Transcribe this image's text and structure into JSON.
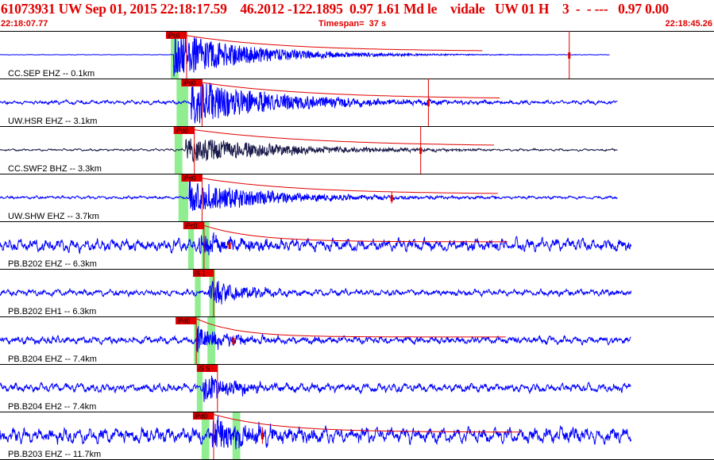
{
  "header": {
    "title": "61073931 UW Sep 01, 2015 22:18:17.59    46.2012 -122.1895  0.97 1.61 Md le    vidale   UW 01 H    3  -  - ---   0.97 0.00",
    "start_time": "22:18:07.77",
    "timespan": "Timespan=  37 s",
    "end_time": "22:18:45.26"
  },
  "colors": {
    "title": "#e00000",
    "trace": "#0000ff",
    "dark_trace": "#1a1a4a",
    "pick_box": "#e00000",
    "envelope": "#e00000",
    "window": "#90ee90",
    "divider": "#000000"
  },
  "chart_data": {
    "type": "line",
    "title": "61073931 UW Sep 01, 2015 22:18:17.59",
    "x_range_seconds": [
      0,
      37
    ],
    "traces": [
      {
        "label": "CC.SEP EHZ -- 0.1km",
        "pick": "iPc0",
        "pick_time": 8.6,
        "onset_time": 9.0,
        "green": [
          [
            8.85,
            9.25
          ]
        ],
        "amplitude": 0.95,
        "noise": 0.012,
        "decay": 4.0,
        "end_time": 31.6,
        "marker_time": 29.5,
        "marker_len": 1.0,
        "envelope": true,
        "color": "#0000ff"
      },
      {
        "label": "UW.HSR EHZ -- 3.1km",
        "pick": "iPd0",
        "pick_time": 9.4,
        "onset_time": 9.9,
        "green": [
          [
            9.15,
            9.75
          ]
        ],
        "amplitude": 0.95,
        "noise": 0.09,
        "decay": 4.5,
        "end_time": 32.0,
        "marker_time": 22.2,
        "marker_len": 1.0,
        "envelope": true,
        "color": "#0000ff"
      },
      {
        "label": "CC.SWF2 BHZ -- 3.3km",
        "pick": "iPd0",
        "pick_time": 9.0,
        "onset_time": 9.6,
        "green": [
          [
            9.05,
            9.45
          ]
        ],
        "amplitude": 0.55,
        "noise": 0.05,
        "decay": 5.0,
        "end_time": 32.0,
        "marker_time": 21.8,
        "marker_len": 1.0,
        "envelope": true,
        "color": "#1a1a4a"
      },
      {
        "label": "UW.SHW EHZ -- 3.7km",
        "pick": "iPd0",
        "pick_time": 9.4,
        "onset_time": 9.8,
        "green": [
          [
            9.25,
            9.75
          ]
        ],
        "amplitude": 0.7,
        "noise": 0.07,
        "decay": 4.0,
        "end_time": 32.0,
        "marker_time": 20.3,
        "marker_len": 0.25,
        "envelope": true,
        "color": "#0000ff"
      },
      {
        "label": "PB.B202 EHZ -- 6.3km",
        "pick": "iPc0",
        "pick_time": 9.5,
        "onset_time": 10.3,
        "green": [
          [
            9.75,
            10.05
          ],
          [
            10.45,
            10.85
          ]
        ],
        "amplitude": 0.5,
        "noise": 0.3,
        "decay": 2.0,
        "end_time": 32.7,
        "marker_time": 11.9,
        "marker_len": 0.1,
        "envelope": true,
        "color": "#0000ff"
      },
      {
        "label": "PB.B202 EH1 -- 6.3km",
        "pick": "iS 1",
        "pick_time": 10.0,
        "onset_time": 10.8,
        "green": [
          [
            10.1,
            10.4
          ],
          [
            10.85,
            11.15
          ]
        ],
        "amplitude": 0.6,
        "noise": 0.15,
        "decay": 1.8,
        "end_time": 32.7,
        "marker_time": null,
        "marker_len": 0,
        "envelope": false,
        "color": "#0000ff"
      },
      {
        "label": "PB.B204 EHZ -- 7.4km",
        "pick": "iPd0",
        "pick_time": 9.1,
        "onset_time": 10.2,
        "green": [
          [
            10.05,
            10.35
          ],
          [
            10.75,
            11.15
          ]
        ],
        "amplitude": 0.55,
        "noise": 0.18,
        "decay": 1.6,
        "end_time": 32.7,
        "marker_time": 12.1,
        "marker_len": 0.2,
        "envelope": true,
        "color": "#0000ff"
      },
      {
        "label": "PB.B204 EH2 -- 7.4km",
        "pick": "iS S",
        "pick_time": 10.2,
        "onset_time": 10.5,
        "green": [
          [
            10.2,
            10.5
          ]
        ],
        "amplitude": 0.6,
        "noise": 0.2,
        "decay": 1.8,
        "end_time": 32.7,
        "marker_time": null,
        "marker_len": 0,
        "envelope": false,
        "color": "#0000ff"
      },
      {
        "label": "PB.B203 EHZ -- 11.7km",
        "pick": "iPd0",
        "pick_time": 10.0,
        "onset_time": 11.0,
        "green": [
          [
            10.45,
            10.85
          ],
          [
            12.05,
            12.45
          ]
        ],
        "amplitude": 0.65,
        "noise": 0.38,
        "decay": 2.5,
        "end_time": 32.7,
        "marker_time": 13.6,
        "marker_len": 0.35,
        "envelope": true,
        "color": "#0000ff"
      }
    ]
  }
}
